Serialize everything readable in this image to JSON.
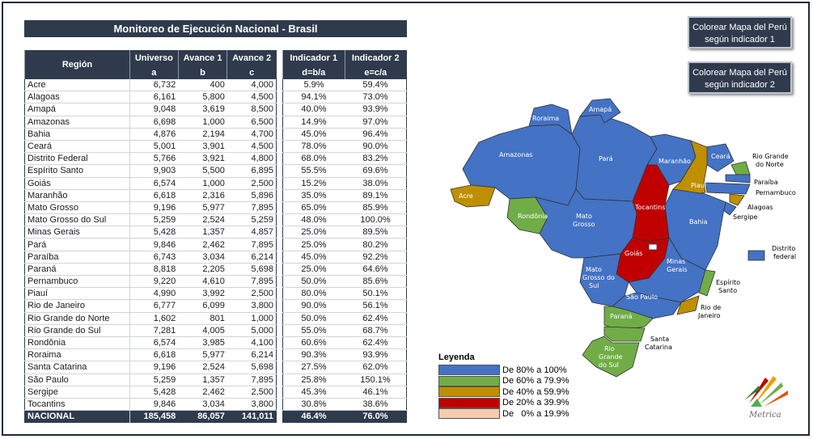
{
  "title": "Monitoreo de Ejecución Nacional - Brasil",
  "table": {
    "headers": {
      "region": "Región",
      "universo": "Universo",
      "universo_sub": "a",
      "avance1": "Avance 1",
      "avance1_sub": "b",
      "avance2": "Avance 2",
      "avance2_sub": "c",
      "ind1": "Indicador 1",
      "ind1_sub": "d=b/a",
      "ind2": "Indicador 2",
      "ind2_sub": "e=c/a"
    },
    "rows": [
      [
        "Acre",
        "6,732",
        "400",
        "4,000",
        "5.9%",
        "59.4%"
      ],
      [
        "Alagoas",
        "6,161",
        "5,800",
        "4,500",
        "94.1%",
        "73.0%"
      ],
      [
        "Amapá",
        "9,048",
        "3,619",
        "8,500",
        "40.0%",
        "93.9%"
      ],
      [
        "Amazonas",
        "6,698",
        "1,000",
        "6,500",
        "14.9%",
        "97.0%"
      ],
      [
        "Bahia",
        "4,876",
        "2,194",
        "4,700",
        "45.0%",
        "96.4%"
      ],
      [
        "Ceará",
        "5,001",
        "3,901",
        "4,500",
        "78.0%",
        "90.0%"
      ],
      [
        "Distrito Federal",
        "5,766",
        "3,921",
        "4,800",
        "68.0%",
        "83.2%"
      ],
      [
        "Espírito Santo",
        "9,903",
        "5,500",
        "6,895",
        "55.5%",
        "69.6%"
      ],
      [
        "Goiás",
        "6,574",
        "1,000",
        "2,500",
        "15.2%",
        "38.0%"
      ],
      [
        "Maranhão",
        "6,618",
        "2,316",
        "5,896",
        "35.0%",
        "89.1%"
      ],
      [
        "Mato Grosso",
        "9,196",
        "5,977",
        "7,895",
        "65.0%",
        "85.9%"
      ],
      [
        "Mato Grosso do Sul",
        "5,259",
        "2,524",
        "5,259",
        "48.0%",
        "100.0%"
      ],
      [
        "Minas Gerais",
        "5,428",
        "1,357",
        "4,857",
        "25.0%",
        "89.5%"
      ],
      [
        "Pará",
        "9,846",
        "2,462",
        "7,895",
        "25.0%",
        "80.2%"
      ],
      [
        "Paraíba",
        "6,743",
        "3,034",
        "6,214",
        "45.0%",
        "92.2%"
      ],
      [
        "Paraná",
        "8,818",
        "2,205",
        "5,698",
        "25.0%",
        "64.6%"
      ],
      [
        "Pernambuco",
        "9,220",
        "4,610",
        "7,895",
        "50.0%",
        "85.6%"
      ],
      [
        "Piauí",
        "4,990",
        "3,992",
        "2,500",
        "80.0%",
        "50.1%"
      ],
      [
        "Rio de Janeiro",
        "6,777",
        "6,099",
        "3,800",
        "90.0%",
        "56.1%"
      ],
      [
        "Rio Grande do Norte",
        "1,602",
        "801",
        "1,000",
        "50.0%",
        "62.4%"
      ],
      [
        "Rio Grande do Sul",
        "7,281",
        "4,005",
        "5,000",
        "55.0%",
        "68.7%"
      ],
      [
        "Rondônia",
        "6,574",
        "3,985",
        "4,100",
        "60.6%",
        "62.4%"
      ],
      [
        "Roraima",
        "6,618",
        "5,977",
        "6,214",
        "90.3%",
        "93.9%"
      ],
      [
        "Santa Catarina",
        "9,196",
        "2,524",
        "5,698",
        "27.5%",
        "62.0%"
      ],
      [
        "São Paulo",
        "5,259",
        "1,357",
        "7,895",
        "25.8%",
        "150.1%"
      ],
      [
        "Sergipe",
        "5,428",
        "2,462",
        "2,500",
        "45.3%",
        "46.1%"
      ],
      [
        "Tocantins",
        "9,846",
        "3,034",
        "3,800",
        "30.8%",
        "38.6%"
      ]
    ],
    "total": [
      "NACIONAL",
      "185,458",
      "86,057",
      "141,011",
      "46.4%",
      "76.0%"
    ]
  },
  "buttons": {
    "b1": "Colorear Mapa del Perú según indicador 1",
    "b2": "Colorear Mapa del Perú según indicador 2"
  },
  "legend": {
    "title": "Leyenda",
    "items": [
      {
        "label": "De 80% a 100%",
        "color": "#4472c4"
      },
      {
        "label": "De 60% a 79.9%",
        "color": "#70ad47"
      },
      {
        "label": "De 40% a 59.9%",
        "color": "#bf8f00"
      },
      {
        "label": "De 20% a 39.9%",
        "color": "#c00000"
      },
      {
        "label": "De   0% a 19.9%",
        "color": "#f8cbad"
      }
    ]
  },
  "map": {
    "labels": {
      "roraima": "Roraima",
      "amapa": "Amapá",
      "amazonas": "Amazonas",
      "para": "Pará",
      "maranhao": "Maranhão",
      "ceara": "Ceará",
      "rgn1": "Rio Grande",
      "rgn2": "do Norte",
      "paraiba": "Paraíba",
      "pernambuco": "Pernambuco",
      "alagoas": "Alagoas",
      "sergipe": "Sergipe",
      "piaui": "Piauí",
      "acre": "Acre",
      "rondonia": "Rondônia",
      "mt1": "Mato",
      "mt2": "Grosso",
      "tocantins": "Tocantins",
      "bahia": "Bahia",
      "goias": "Goiás",
      "df1": "Distrito",
      "df2": "federal",
      "mg1": "Minas",
      "mg2": "Gerais",
      "ms1": "Mato",
      "ms2": "Grosso do",
      "ms3": "Sul",
      "es1": "Espírito",
      "es2": "Santo",
      "sp": "São Paulo",
      "rj1": "Rio de",
      "rj2": "Janeiro",
      "parana": "Paraná",
      "sc1": "Santa",
      "sc2": "Catarina",
      "rgs1": "Rio",
      "rgs2": "Grande",
      "rgs3": "do Sul"
    },
    "colors": {
      "blue": "#4472c4",
      "green": "#70ad47",
      "gold": "#bf8f00",
      "red": "#c00000"
    }
  },
  "logo_text": "Metrica"
}
